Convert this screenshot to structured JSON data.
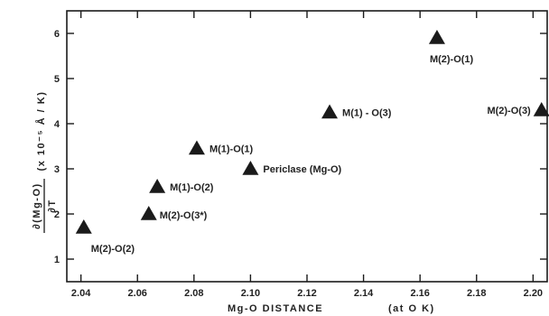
{
  "chart_data": {
    "type": "scatter",
    "title": "",
    "xlabel": "Mg-O  DISTANCE",
    "xlabel_suffix": "(at  O  K)",
    "ylabel_numerator": "∂(Mg-O)",
    "ylabel_denominator": "∂T",
    "ylabel_units": "(x 10⁻⁵ Å / K)",
    "xlim": [
      2.035,
      2.205
    ],
    "ylim": [
      0.5,
      6.5
    ],
    "x_ticks": [
      "2.04",
      "2.06",
      "2.08",
      "2.10",
      "2.12",
      "2.14",
      "2.16",
      "2.18",
      "2.20"
    ],
    "y_ticks": [
      "1",
      "2",
      "3",
      "4",
      "5",
      "6"
    ],
    "marker": "triangle",
    "marker_color": "#1a1a1a",
    "points": [
      {
        "label": "M(2)-O(2)",
        "x": 2.041,
        "y": 1.7
      },
      {
        "label": "M(2)-O(3*)",
        "x": 2.064,
        "y": 2.0
      },
      {
        "label": "M(1)-O(2)",
        "x": 2.067,
        "y": 2.6
      },
      {
        "label": "M(1)-O(1)",
        "x": 2.081,
        "y": 3.45
      },
      {
        "label": "Periclase  (Mg-O)",
        "x": 2.1,
        "y": 3.0
      },
      {
        "label": "M(1) - O(3)",
        "x": 2.128,
        "y": 4.25
      },
      {
        "label": "M(2)-O(1)",
        "x": 2.166,
        "y": 5.9
      },
      {
        "label": "M(2)-O(3)",
        "x": 2.203,
        "y": 4.3
      }
    ]
  }
}
